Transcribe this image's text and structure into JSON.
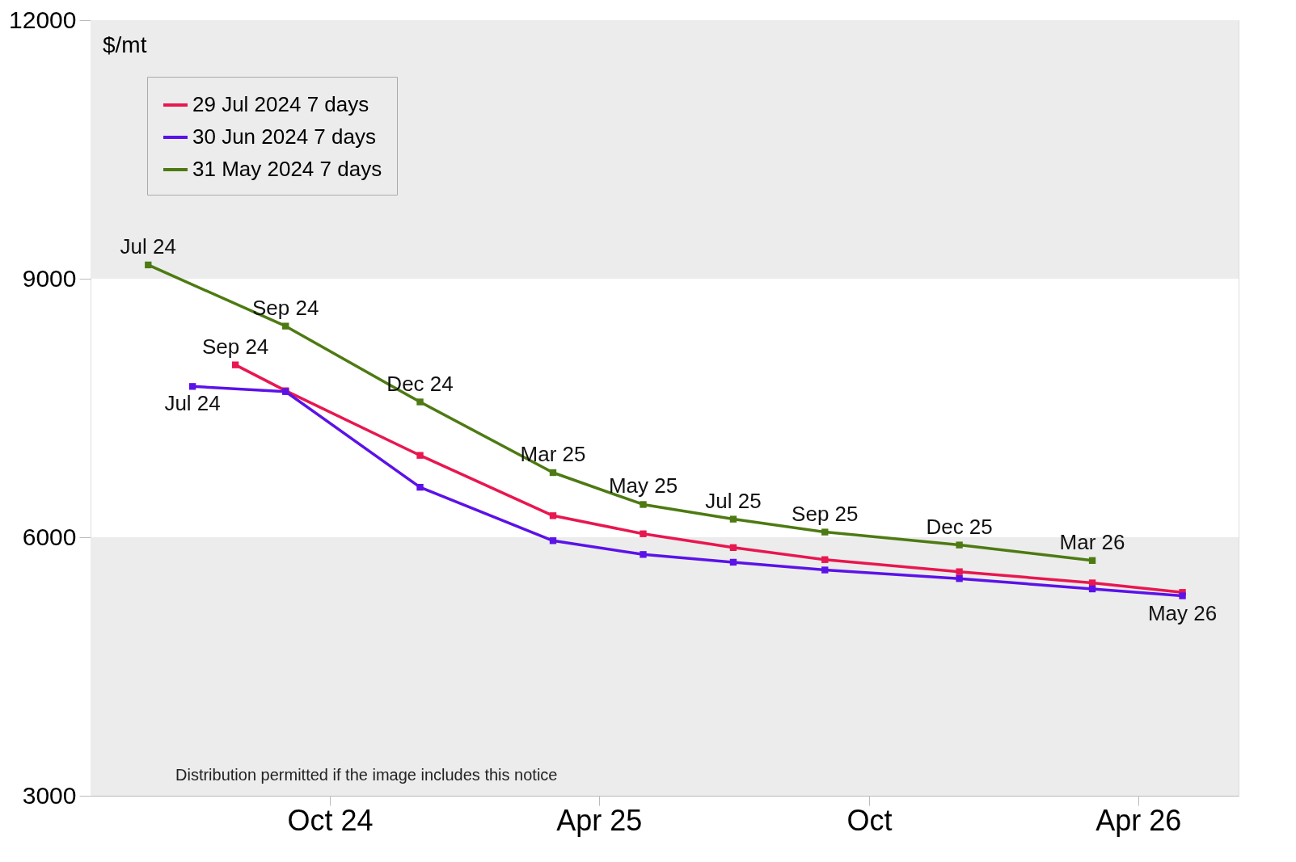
{
  "chart_data": {
    "type": "line",
    "ylabel": "$/mt",
    "xlim": [
      "2024-04-22",
      "2026-06-08"
    ],
    "ylim": [
      3000,
      12000
    ],
    "yticks": [
      3000,
      6000,
      9000,
      12000
    ],
    "xticks": [
      {
        "value": "2024-10-01",
        "label": "Oct 24"
      },
      {
        "value": "2025-04-01",
        "label": "Apr 25"
      },
      {
        "value": "2025-10-01",
        "label": "Oct"
      },
      {
        "value": "2026-04-01",
        "label": "Apr 26"
      }
    ],
    "series": [
      {
        "name": "29 Jul 2024 7 days",
        "color": "#e8174f",
        "x": [
          "2024-07-29",
          "2024-09-01",
          "2024-12-01",
          "2025-03-01",
          "2025-05-01",
          "2025-07-01",
          "2025-09-01",
          "2025-12-01",
          "2026-03-01",
          "2026-05-01"
        ],
        "values": [
          8000,
          7700,
          6950,
          6250,
          6040,
          5880,
          5740,
          5600,
          5470,
          5360
        ]
      },
      {
        "name": "30 Jun 2024 7 days",
        "color": "#5b12e8",
        "x": [
          "2024-06-30",
          "2024-09-01",
          "2024-12-01",
          "2025-03-01",
          "2025-05-01",
          "2025-07-01",
          "2025-09-01",
          "2025-12-01",
          "2026-03-01",
          "2026-05-01"
        ],
        "values": [
          7750,
          7690,
          6580,
          5960,
          5800,
          5710,
          5620,
          5520,
          5400,
          5320
        ]
      },
      {
        "name": "31 May 2024 7 days",
        "color": "#4d7a12",
        "x": [
          "2024-05-31",
          "2024-09-01",
          "2024-12-01",
          "2025-03-01",
          "2025-05-01",
          "2025-07-01",
          "2025-09-01",
          "2025-12-01",
          "2026-03-01"
        ],
        "values": [
          9160,
          8450,
          7570,
          6750,
          6380,
          6210,
          6060,
          5910,
          5730
        ]
      }
    ],
    "marker": "square",
    "line_style": "solid",
    "legend": "top left",
    "grid": false,
    "bands": [
      {
        "axis": "y",
        "from": 9000,
        "to": 12000,
        "color": "#ececec"
      },
      {
        "axis": "y",
        "from": 3000,
        "to": 6000,
        "color": "#ececec"
      }
    ],
    "annotations": [
      {
        "text": "Jul 24",
        "x": "2024-05-31",
        "y": 9160
      },
      {
        "text": "Sep 24",
        "x": "2024-09-01",
        "y": 8450
      },
      {
        "text": "Dec 24",
        "x": "2024-12-01",
        "y": 7570
      },
      {
        "text": "Mar 25",
        "x": "2025-03-01",
        "y": 6750
      },
      {
        "text": "May 25",
        "x": "2025-05-01",
        "y": 6380
      },
      {
        "text": "Jul 25",
        "x": "2025-07-01",
        "y": 6210
      },
      {
        "text": "Sep 25",
        "x": "2025-09-01",
        "y": 6060
      },
      {
        "text": "Dec 25",
        "x": "2025-12-01",
        "y": 5910
      },
      {
        "text": "Mar 26",
        "x": "2026-03-01",
        "y": 5730
      },
      {
        "text": "Sep 24",
        "x": "2024-07-29",
        "y": 8000
      },
      {
        "text": "Jul 24",
        "x": "2024-06-30",
        "y": 7750
      },
      {
        "text": "May 26",
        "x": "2026-05-01",
        "y": 5320
      },
      "Distribution permitted if the image includes this notice"
    ]
  }
}
